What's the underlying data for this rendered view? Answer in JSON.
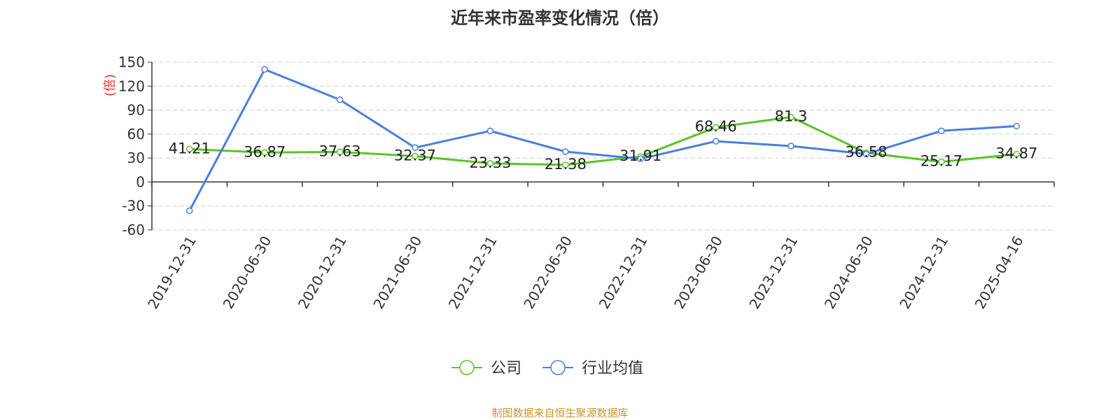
{
  "chart_data": {
    "type": "line",
    "title": "近年来市盈率变化情况（倍）",
    "ylabel": "(倍)",
    "ylim": [
      -60,
      150
    ],
    "yticks": [
      150,
      120,
      90,
      60,
      30,
      0,
      -30,
      -60
    ],
    "grid": true,
    "legend_position": "bottom",
    "categories": [
      "2019-12-31",
      "2020-06-30",
      "2020-12-31",
      "2021-06-30",
      "2021-12-31",
      "2022-06-30",
      "2022-12-31",
      "2023-06-30",
      "2023-12-31",
      "2024-06-30",
      "2024-12-31",
      "2025-04-16"
    ],
    "series": [
      {
        "name": "公司",
        "color": "#5cc425",
        "values": [
          41.21,
          36.87,
          37.63,
          32.37,
          23.33,
          21.38,
          31.91,
          68.46,
          81.3,
          36.58,
          25.17,
          34.87
        ],
        "labels": [
          "41.21",
          "36.87",
          "37.63",
          "32.37",
          "23.33",
          "21.38",
          "31.91",
          "68.46",
          "81.3",
          "36.58",
          "25.17",
          "34.87"
        ]
      },
      {
        "name": "行业均值",
        "color": "#4a7fdc",
        "values": [
          -36,
          141,
          103,
          43,
          64,
          38,
          29,
          51,
          45,
          35,
          64,
          70
        ]
      }
    ],
    "source": "制图数据来自恒生聚源数据库"
  }
}
